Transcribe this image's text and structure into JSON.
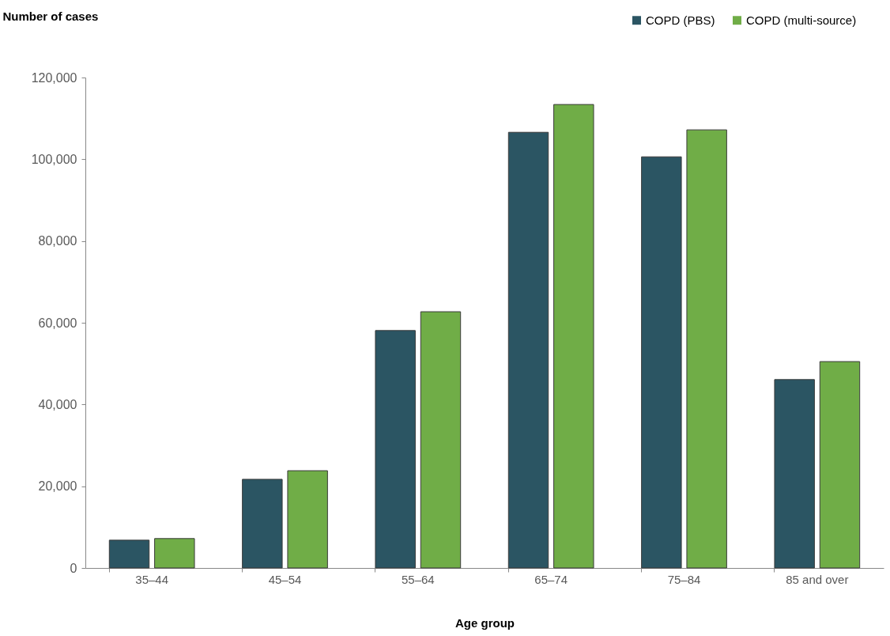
{
  "chart_data": {
    "type": "bar",
    "xlabel": "Age group",
    "ylabel": "Number of cases",
    "categories": [
      "35–44",
      "45–54",
      "55–64",
      "65–74",
      "75–84",
      "85 and over"
    ],
    "series": [
      {
        "name": "COPD (PBS)",
        "color": "#2b5563",
        "values": [
          6800,
          21700,
          58100,
          106600,
          100600,
          46100
        ]
      },
      {
        "name": "COPD (multi-source)",
        "color": "#70ad47",
        "values": [
          7200,
          23800,
          62700,
          113400,
          107200,
          50500
        ]
      }
    ],
    "ylim": [
      0,
      120000
    ],
    "yticks": [
      0,
      {
        "value": 20000,
        "label": "20,000"
      },
      {
        "value": 40000,
        "label": "40,000"
      },
      {
        "value": 60000,
        "label": "60,000"
      },
      {
        "value": 80000,
        "label": "80,000"
      },
      {
        "value": 100000,
        "label": "100,000"
      },
      {
        "value": 120000,
        "label": "120,000"
      }
    ],
    "grid": false,
    "legend": "top right"
  }
}
